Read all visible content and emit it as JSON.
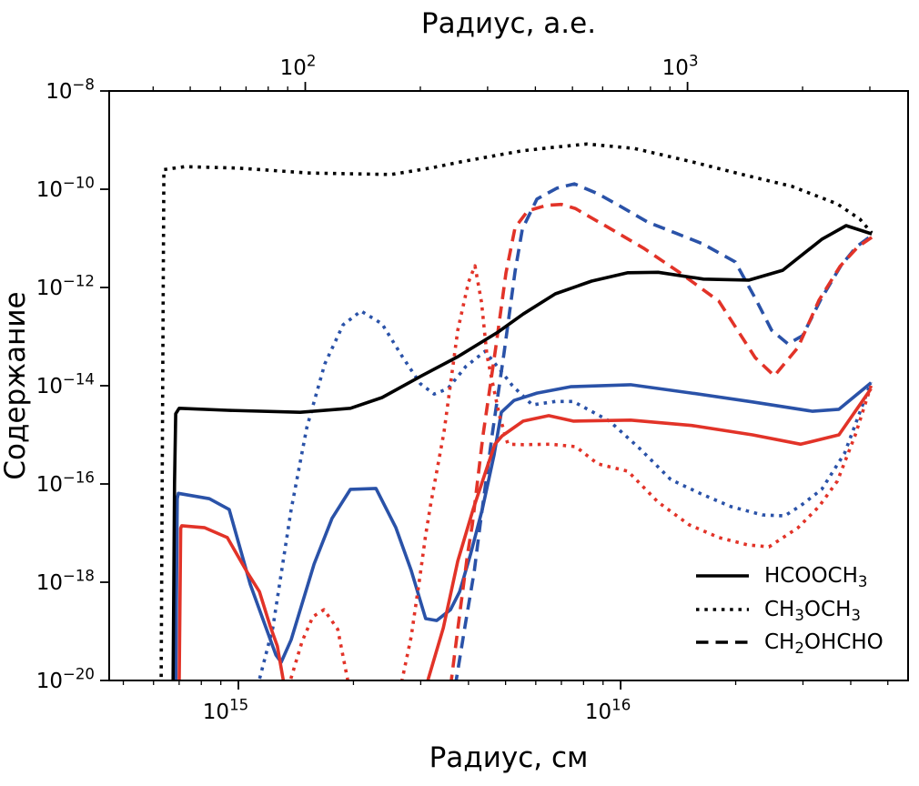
{
  "chart_data": {
    "type": "line",
    "title_top": "Радиус, а.е.",
    "xlabel_bottom": "Радиус, см",
    "ylabel": "Содержание",
    "colors": {
      "black": "#000000",
      "blue": "#2a52a8",
      "red": "#e23328"
    },
    "axes": {
      "x_log_min": 14.662,
      "x_log_max": 16.752,
      "y_log_min": -20,
      "y_log_max": -8,
      "bottom": {
        "major": [
          {
            "log": 15.0,
            "exp": "15"
          },
          {
            "log": 16.0,
            "exp": "16"
          }
        ],
        "minor": [
          14.699,
          14.778,
          14.845,
          14.903,
          14.954,
          15.301,
          15.477,
          15.602,
          15.699,
          15.778,
          15.845,
          15.903,
          15.954,
          16.301,
          16.477,
          16.602,
          16.699
        ]
      },
      "top": {
        "major": [
          {
            "log": 15.175,
            "exp": "2"
          },
          {
            "log": 16.175,
            "exp": "3"
          }
        ],
        "minor": [
          14.777,
          14.874,
          14.953,
          15.02,
          15.078,
          15.129,
          15.476,
          15.652,
          15.777,
          15.874,
          15.953,
          16.02,
          16.078,
          16.129,
          16.476,
          16.652
        ]
      },
      "left": {
        "major": [
          {
            "log": -8,
            "exp": "−8"
          },
          {
            "log": -10,
            "exp": "−10"
          },
          {
            "log": -12,
            "exp": "−12"
          },
          {
            "log": -14,
            "exp": "−14"
          },
          {
            "log": -16,
            "exp": "−16"
          },
          {
            "log": -18,
            "exp": "−18"
          },
          {
            "log": -20,
            "exp": "−20"
          }
        ]
      }
    },
    "legend": [
      {
        "style": "solid",
        "label": [
          [
            "HCOOCH",
            0
          ],
          [
            "3",
            2
          ]
        ]
      },
      {
        "style": "dotted",
        "label": [
          [
            "CH",
            0
          ],
          [
            "3",
            2
          ],
          [
            "OCH",
            0
          ],
          [
            "3",
            2
          ]
        ]
      },
      {
        "style": "dashed",
        "label": [
          [
            "CH",
            0
          ],
          [
            "2",
            2
          ],
          [
            "OHCHO",
            0
          ]
        ]
      }
    ],
    "series": [
      {
        "name": "HCOOCH3-blue",
        "color": "blue",
        "style": "solid",
        "points": [
          [
            14.836,
            -20.1
          ],
          [
            14.84,
            -16.3
          ],
          [
            14.843,
            -16.19
          ],
          [
            14.924,
            -16.3
          ],
          [
            14.976,
            -16.52
          ],
          [
            15.031,
            -18.04
          ],
          [
            15.098,
            -19.48
          ],
          [
            15.112,
            -19.63
          ],
          [
            15.138,
            -19.17
          ],
          [
            15.198,
            -17.63
          ],
          [
            15.245,
            -16.7
          ],
          [
            15.293,
            -16.11
          ],
          [
            15.36,
            -16.09
          ],
          [
            15.412,
            -16.89
          ],
          [
            15.452,
            -17.76
          ],
          [
            15.49,
            -18.74
          ],
          [
            15.519,
            -18.78
          ],
          [
            15.555,
            -18.56
          ],
          [
            15.579,
            -18.19
          ],
          [
            15.607,
            -17.44
          ],
          [
            15.638,
            -16.52
          ],
          [
            15.669,
            -15.41
          ],
          [
            15.688,
            -14.54
          ],
          [
            15.721,
            -14.3
          ],
          [
            15.781,
            -14.15
          ],
          [
            15.869,
            -14.02
          ],
          [
            16.026,
            -13.98
          ],
          [
            16.186,
            -14.15
          ],
          [
            16.345,
            -14.33
          ],
          [
            16.502,
            -14.52
          ],
          [
            16.571,
            -14.48
          ],
          [
            16.655,
            -13.94
          ]
        ]
      },
      {
        "name": "CH3OCH3-blue",
        "color": "blue",
        "style": "dotted",
        "points": [
          [
            15.05,
            -20.13
          ],
          [
            15.09,
            -18.93
          ],
          [
            15.138,
            -16.52
          ],
          [
            15.179,
            -14.85
          ],
          [
            15.226,
            -13.56
          ],
          [
            15.274,
            -12.76
          ],
          [
            15.321,
            -12.48
          ],
          [
            15.376,
            -12.74
          ],
          [
            15.429,
            -13.41
          ],
          [
            15.476,
            -13.96
          ],
          [
            15.512,
            -14.17
          ],
          [
            15.548,
            -14.06
          ],
          [
            15.595,
            -13.61
          ],
          [
            15.645,
            -13.3
          ],
          [
            15.686,
            -13.69
          ],
          [
            15.717,
            -14.0
          ],
          [
            15.769,
            -14.39
          ],
          [
            15.829,
            -14.32
          ],
          [
            15.876,
            -14.32
          ],
          [
            15.971,
            -14.72
          ],
          [
            16.05,
            -15.28
          ],
          [
            16.131,
            -15.91
          ],
          [
            16.21,
            -16.2
          ],
          [
            16.288,
            -16.46
          ],
          [
            16.371,
            -16.63
          ],
          [
            16.429,
            -16.65
          ],
          [
            16.471,
            -16.44
          ],
          [
            16.526,
            -16.11
          ],
          [
            16.586,
            -15.37
          ],
          [
            16.655,
            -13.93
          ]
        ]
      },
      {
        "name": "CH2OHCHO-blue",
        "color": "blue",
        "style": "dashed",
        "points": [
          [
            15.567,
            -20.13
          ],
          [
            15.593,
            -18.89
          ],
          [
            15.617,
            -17.78
          ],
          [
            15.633,
            -16.8
          ],
          [
            15.664,
            -15.0
          ],
          [
            15.695,
            -13.33
          ],
          [
            15.724,
            -11.67
          ],
          [
            15.743,
            -10.81
          ],
          [
            15.781,
            -10.2
          ],
          [
            15.833,
            -9.98
          ],
          [
            15.879,
            -9.89
          ],
          [
            15.94,
            -10.09
          ],
          [
            16.0,
            -10.35
          ],
          [
            16.071,
            -10.67
          ],
          [
            16.143,
            -10.89
          ],
          [
            16.214,
            -11.11
          ],
          [
            16.3,
            -11.48
          ],
          [
            16.355,
            -12.26
          ],
          [
            16.395,
            -12.87
          ],
          [
            16.438,
            -13.15
          ],
          [
            16.476,
            -12.98
          ],
          [
            16.524,
            -12.24
          ],
          [
            16.576,
            -11.56
          ],
          [
            16.617,
            -11.17
          ],
          [
            16.657,
            -10.94
          ]
        ]
      },
      {
        "name": "HCOOCH3-red",
        "color": "red",
        "style": "solid",
        "points": [
          [
            14.845,
            -20.1
          ],
          [
            14.849,
            -16.9
          ],
          [
            14.852,
            -16.85
          ],
          [
            14.912,
            -16.89
          ],
          [
            14.971,
            -17.09
          ],
          [
            15.024,
            -17.81
          ],
          [
            15.055,
            -18.19
          ],
          [
            15.083,
            -18.89
          ],
          [
            15.102,
            -19.3
          ],
          [
            15.121,
            -20.15
          ],
          [
            15.49,
            -20.15
          ],
          [
            15.536,
            -18.93
          ],
          [
            15.574,
            -17.57
          ],
          [
            15.614,
            -16.52
          ],
          [
            15.652,
            -15.63
          ],
          [
            15.671,
            -15.19
          ],
          [
            15.69,
            -15.02
          ],
          [
            15.745,
            -14.72
          ],
          [
            15.812,
            -14.61
          ],
          [
            15.876,
            -14.72
          ],
          [
            16.026,
            -14.7
          ],
          [
            16.186,
            -14.81
          ],
          [
            16.345,
            -15.0
          ],
          [
            16.471,
            -15.19
          ],
          [
            16.571,
            -15.0
          ],
          [
            16.655,
            -14.06
          ]
        ]
      },
      {
        "name": "CH3OCH3-red",
        "color": "red",
        "style": "dotted",
        "points": [
          [
            15.131,
            -20.13
          ],
          [
            15.167,
            -19.2
          ],
          [
            15.195,
            -18.7
          ],
          [
            15.224,
            -18.56
          ],
          [
            15.26,
            -18.96
          ],
          [
            15.29,
            -20.15
          ],
          [
            15.424,
            -20.15
          ],
          [
            15.452,
            -19.11
          ],
          [
            15.474,
            -17.94
          ],
          [
            15.49,
            -17.04
          ],
          [
            15.502,
            -16.46
          ],
          [
            15.538,
            -14.94
          ],
          [
            15.574,
            -12.87
          ],
          [
            15.602,
            -11.89
          ],
          [
            15.619,
            -11.56
          ],
          [
            15.636,
            -12.3
          ],
          [
            15.65,
            -13.37
          ],
          [
            15.667,
            -14.02
          ],
          [
            15.683,
            -14.61
          ],
          [
            15.705,
            -15.19
          ],
          [
            15.745,
            -15.2
          ],
          [
            15.817,
            -15.19
          ],
          [
            15.883,
            -15.24
          ],
          [
            15.94,
            -15.59
          ],
          [
            16.019,
            -15.74
          ],
          [
            16.098,
            -16.37
          ],
          [
            16.179,
            -16.83
          ],
          [
            16.257,
            -17.09
          ],
          [
            16.333,
            -17.24
          ],
          [
            16.388,
            -17.28
          ],
          [
            16.464,
            -16.89
          ],
          [
            16.519,
            -16.46
          ],
          [
            16.567,
            -15.94
          ],
          [
            16.614,
            -15.0
          ],
          [
            16.655,
            -14.0
          ]
        ]
      },
      {
        "name": "CH2OHCHO-red",
        "color": "red",
        "style": "dashed",
        "points": [
          [
            15.555,
            -20.13
          ],
          [
            15.581,
            -18.52
          ],
          [
            15.6,
            -17.41
          ],
          [
            15.612,
            -16.83
          ],
          [
            15.64,
            -15.0
          ],
          [
            15.674,
            -13.19
          ],
          [
            15.7,
            -11.7
          ],
          [
            15.724,
            -10.78
          ],
          [
            15.757,
            -10.44
          ],
          [
            15.805,
            -10.33
          ],
          [
            15.845,
            -10.31
          ],
          [
            15.881,
            -10.39
          ],
          [
            15.979,
            -10.83
          ],
          [
            16.06,
            -11.2
          ],
          [
            16.155,
            -11.7
          ],
          [
            16.257,
            -12.28
          ],
          [
            16.352,
            -13.43
          ],
          [
            16.402,
            -13.8
          ],
          [
            16.464,
            -13.22
          ],
          [
            16.519,
            -12.26
          ],
          [
            16.574,
            -11.57
          ],
          [
            16.621,
            -11.17
          ],
          [
            16.657,
            -10.98
          ]
        ]
      },
      {
        "name": "HCOOCH3-black",
        "color": "black",
        "style": "solid",
        "points": [
          [
            14.829,
            -20.1
          ],
          [
            14.833,
            -16.0
          ],
          [
            14.836,
            -14.57
          ],
          [
            14.845,
            -14.46
          ],
          [
            14.971,
            -14.5
          ],
          [
            15.162,
            -14.54
          ],
          [
            15.293,
            -14.46
          ],
          [
            15.376,
            -14.24
          ],
          [
            15.479,
            -13.8
          ],
          [
            15.574,
            -13.41
          ],
          [
            15.679,
            -12.91
          ],
          [
            15.745,
            -12.54
          ],
          [
            15.829,
            -12.13
          ],
          [
            15.924,
            -11.87
          ],
          [
            16.019,
            -11.7
          ],
          [
            16.098,
            -11.69
          ],
          [
            16.217,
            -11.83
          ],
          [
            16.336,
            -11.85
          ],
          [
            16.424,
            -11.65
          ],
          [
            16.526,
            -11.02
          ],
          [
            16.59,
            -10.74
          ],
          [
            16.657,
            -10.91
          ]
        ]
      },
      {
        "name": "CH3OCH3-black",
        "color": "black",
        "style": "dotted",
        "points": [
          [
            14.798,
            -20.1
          ],
          [
            14.802,
            -14.0
          ],
          [
            14.805,
            -9.6
          ],
          [
            14.86,
            -9.54
          ],
          [
            15.0,
            -9.57
          ],
          [
            15.186,
            -9.67
          ],
          [
            15.4,
            -9.7
          ],
          [
            15.502,
            -9.57
          ],
          [
            15.583,
            -9.44
          ],
          [
            15.662,
            -9.33
          ],
          [
            15.74,
            -9.22
          ],
          [
            15.821,
            -9.15
          ],
          [
            15.912,
            -9.08
          ],
          [
            16.036,
            -9.17
          ],
          [
            16.186,
            -9.44
          ],
          [
            16.329,
            -9.72
          ],
          [
            16.448,
            -9.94
          ],
          [
            16.567,
            -10.3
          ],
          [
            16.626,
            -10.61
          ],
          [
            16.657,
            -10.89
          ]
        ]
      }
    ]
  }
}
